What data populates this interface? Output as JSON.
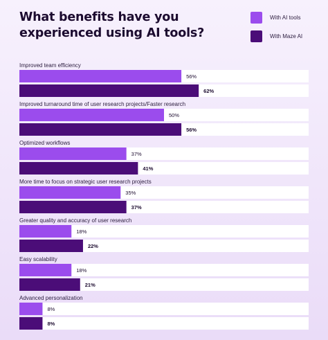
{
  "chart_data": {
    "type": "bar",
    "orientation": "horizontal",
    "title": "What benefits have you experienced using AI tools?",
    "categories": [
      "Improved team efficiency",
      "Improved turnaround time of user research projects/Faster research",
      "Optimized workflows",
      "More time to focus on strategic user research projects",
      "Greater quality and accuracy of user research",
      "Easy scalability",
      "Advanced personalization"
    ],
    "series": [
      {
        "name": "With AI tools",
        "color": "#9b4ced",
        "values": [
          56,
          50,
          37,
          35,
          18,
          18,
          8
        ]
      },
      {
        "name": "With Maze AI",
        "color": "#4b0d78",
        "values": [
          62,
          56,
          41,
          37,
          22,
          21,
          8
        ]
      }
    ],
    "value_suffix": "%",
    "xlim": [
      0,
      100
    ],
    "grid": false,
    "legend_position": "top-right"
  }
}
